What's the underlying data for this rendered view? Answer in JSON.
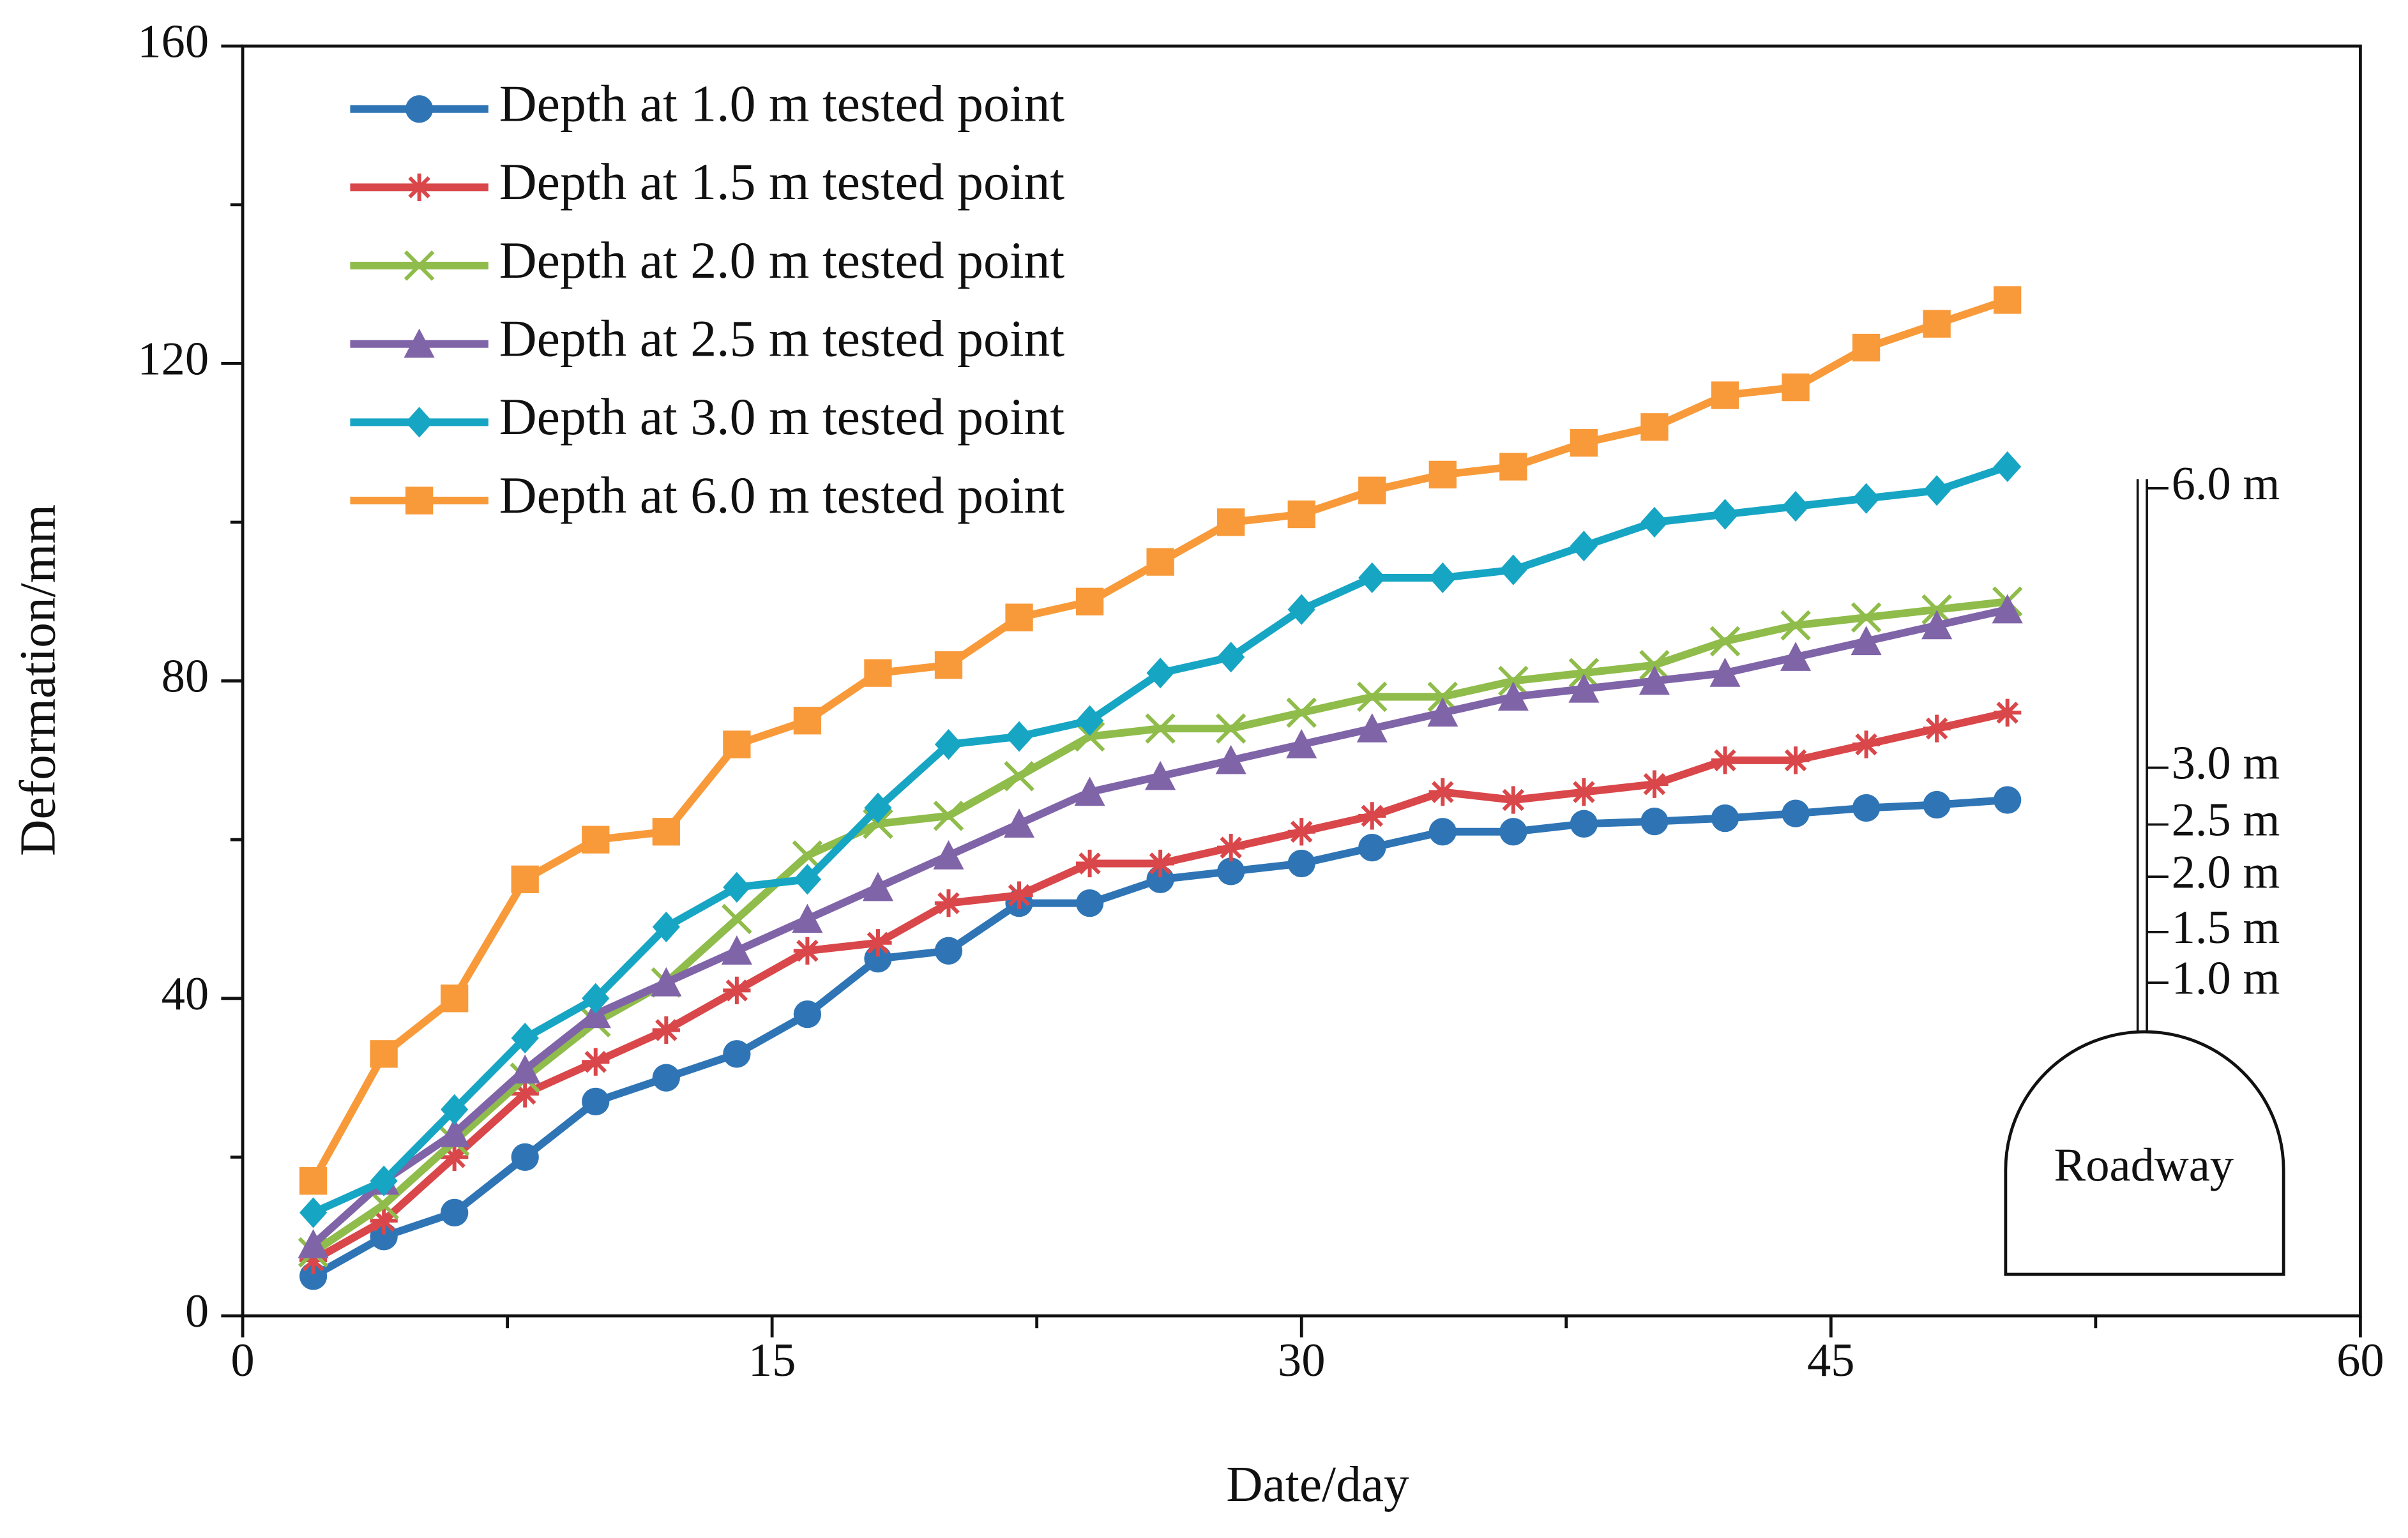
{
  "chart_data": {
    "type": "line",
    "x_label": "Date/day",
    "y_label": "Deformation/mm",
    "x": [
      2,
      4,
      6,
      8,
      10,
      12,
      14,
      16,
      18,
      20,
      22,
      24,
      26,
      28,
      30,
      32,
      34,
      36,
      38,
      40,
      42,
      44,
      46,
      48,
      50
    ],
    "series": [
      {
        "name": "Depth at 1.0 m tested point",
        "color": "#2f75b5",
        "marker": "circle",
        "values": [
          5,
          10,
          13,
          20,
          27,
          30,
          33,
          38,
          45,
          46,
          52,
          52,
          55,
          56,
          57,
          59,
          61,
          61,
          62,
          62.3,
          62.7,
          63.3,
          64,
          64.4,
          65
        ]
      },
      {
        "name": "Depth at 1.5 m tested point",
        "color": "#d9474a",
        "marker": "asterisk",
        "values": [
          7,
          12,
          20,
          28,
          32,
          36,
          41,
          46,
          47,
          52,
          53,
          57,
          57,
          59,
          61,
          63,
          66,
          65,
          66,
          67,
          70,
          70,
          72,
          74,
          76
        ]
      },
      {
        "name": "Depth at 2.0 m tested point",
        "color": "#8fbc4a",
        "marker": "x",
        "values": [
          8,
          14,
          22,
          30,
          37,
          42,
          50,
          58,
          62,
          63,
          68,
          73,
          74,
          74,
          76,
          78,
          78,
          80,
          81,
          82,
          85,
          87,
          88,
          89,
          90
        ]
      },
      {
        "name": "Depth at 2.5 m tested point",
        "color": "#8064a8",
        "marker": "triangle",
        "values": [
          9,
          17,
          23,
          31,
          38,
          42,
          46,
          50,
          54,
          58,
          62,
          66,
          68,
          70,
          72,
          74,
          76,
          78,
          79,
          80,
          81,
          83,
          85,
          87,
          89
        ]
      },
      {
        "name": "Depth at 3.0 m tested point",
        "color": "#17a5c4",
        "marker": "diamond",
        "values": [
          13,
          17,
          26,
          35,
          40,
          49,
          54,
          55,
          64,
          72,
          73,
          75,
          81,
          83,
          89,
          93,
          93,
          94,
          97,
          100,
          101,
          102,
          103,
          104,
          107
        ]
      },
      {
        "name": "Depth at 6.0 m tested point",
        "color": "#f89a3a",
        "marker": "square",
        "values": [
          17,
          33,
          40,
          55,
          60,
          61,
          72,
          75,
          81,
          82,
          88,
          90,
          95,
          100,
          101,
          104,
          106,
          107,
          110,
          112,
          116,
          117,
          122,
          125,
          128
        ]
      }
    ],
    "xlim": [
      0,
      60
    ],
    "xticks": [
      0,
      15,
      30,
      45,
      60
    ],
    "xminorticks": [
      7.5,
      22.5,
      37.5,
      52.5
    ],
    "ylim": [
      0,
      160
    ],
    "yticks": [
      0,
      40,
      80,
      120,
      160
    ],
    "yminorticks": [
      20,
      60,
      100,
      140
    ],
    "inset": {
      "depth_labels": [
        "6.0 m",
        "3.0 m",
        "2.5 m",
        "2.0 m",
        "1.5 m",
        "1.0 m"
      ],
      "roadway": "Roadway"
    }
  }
}
